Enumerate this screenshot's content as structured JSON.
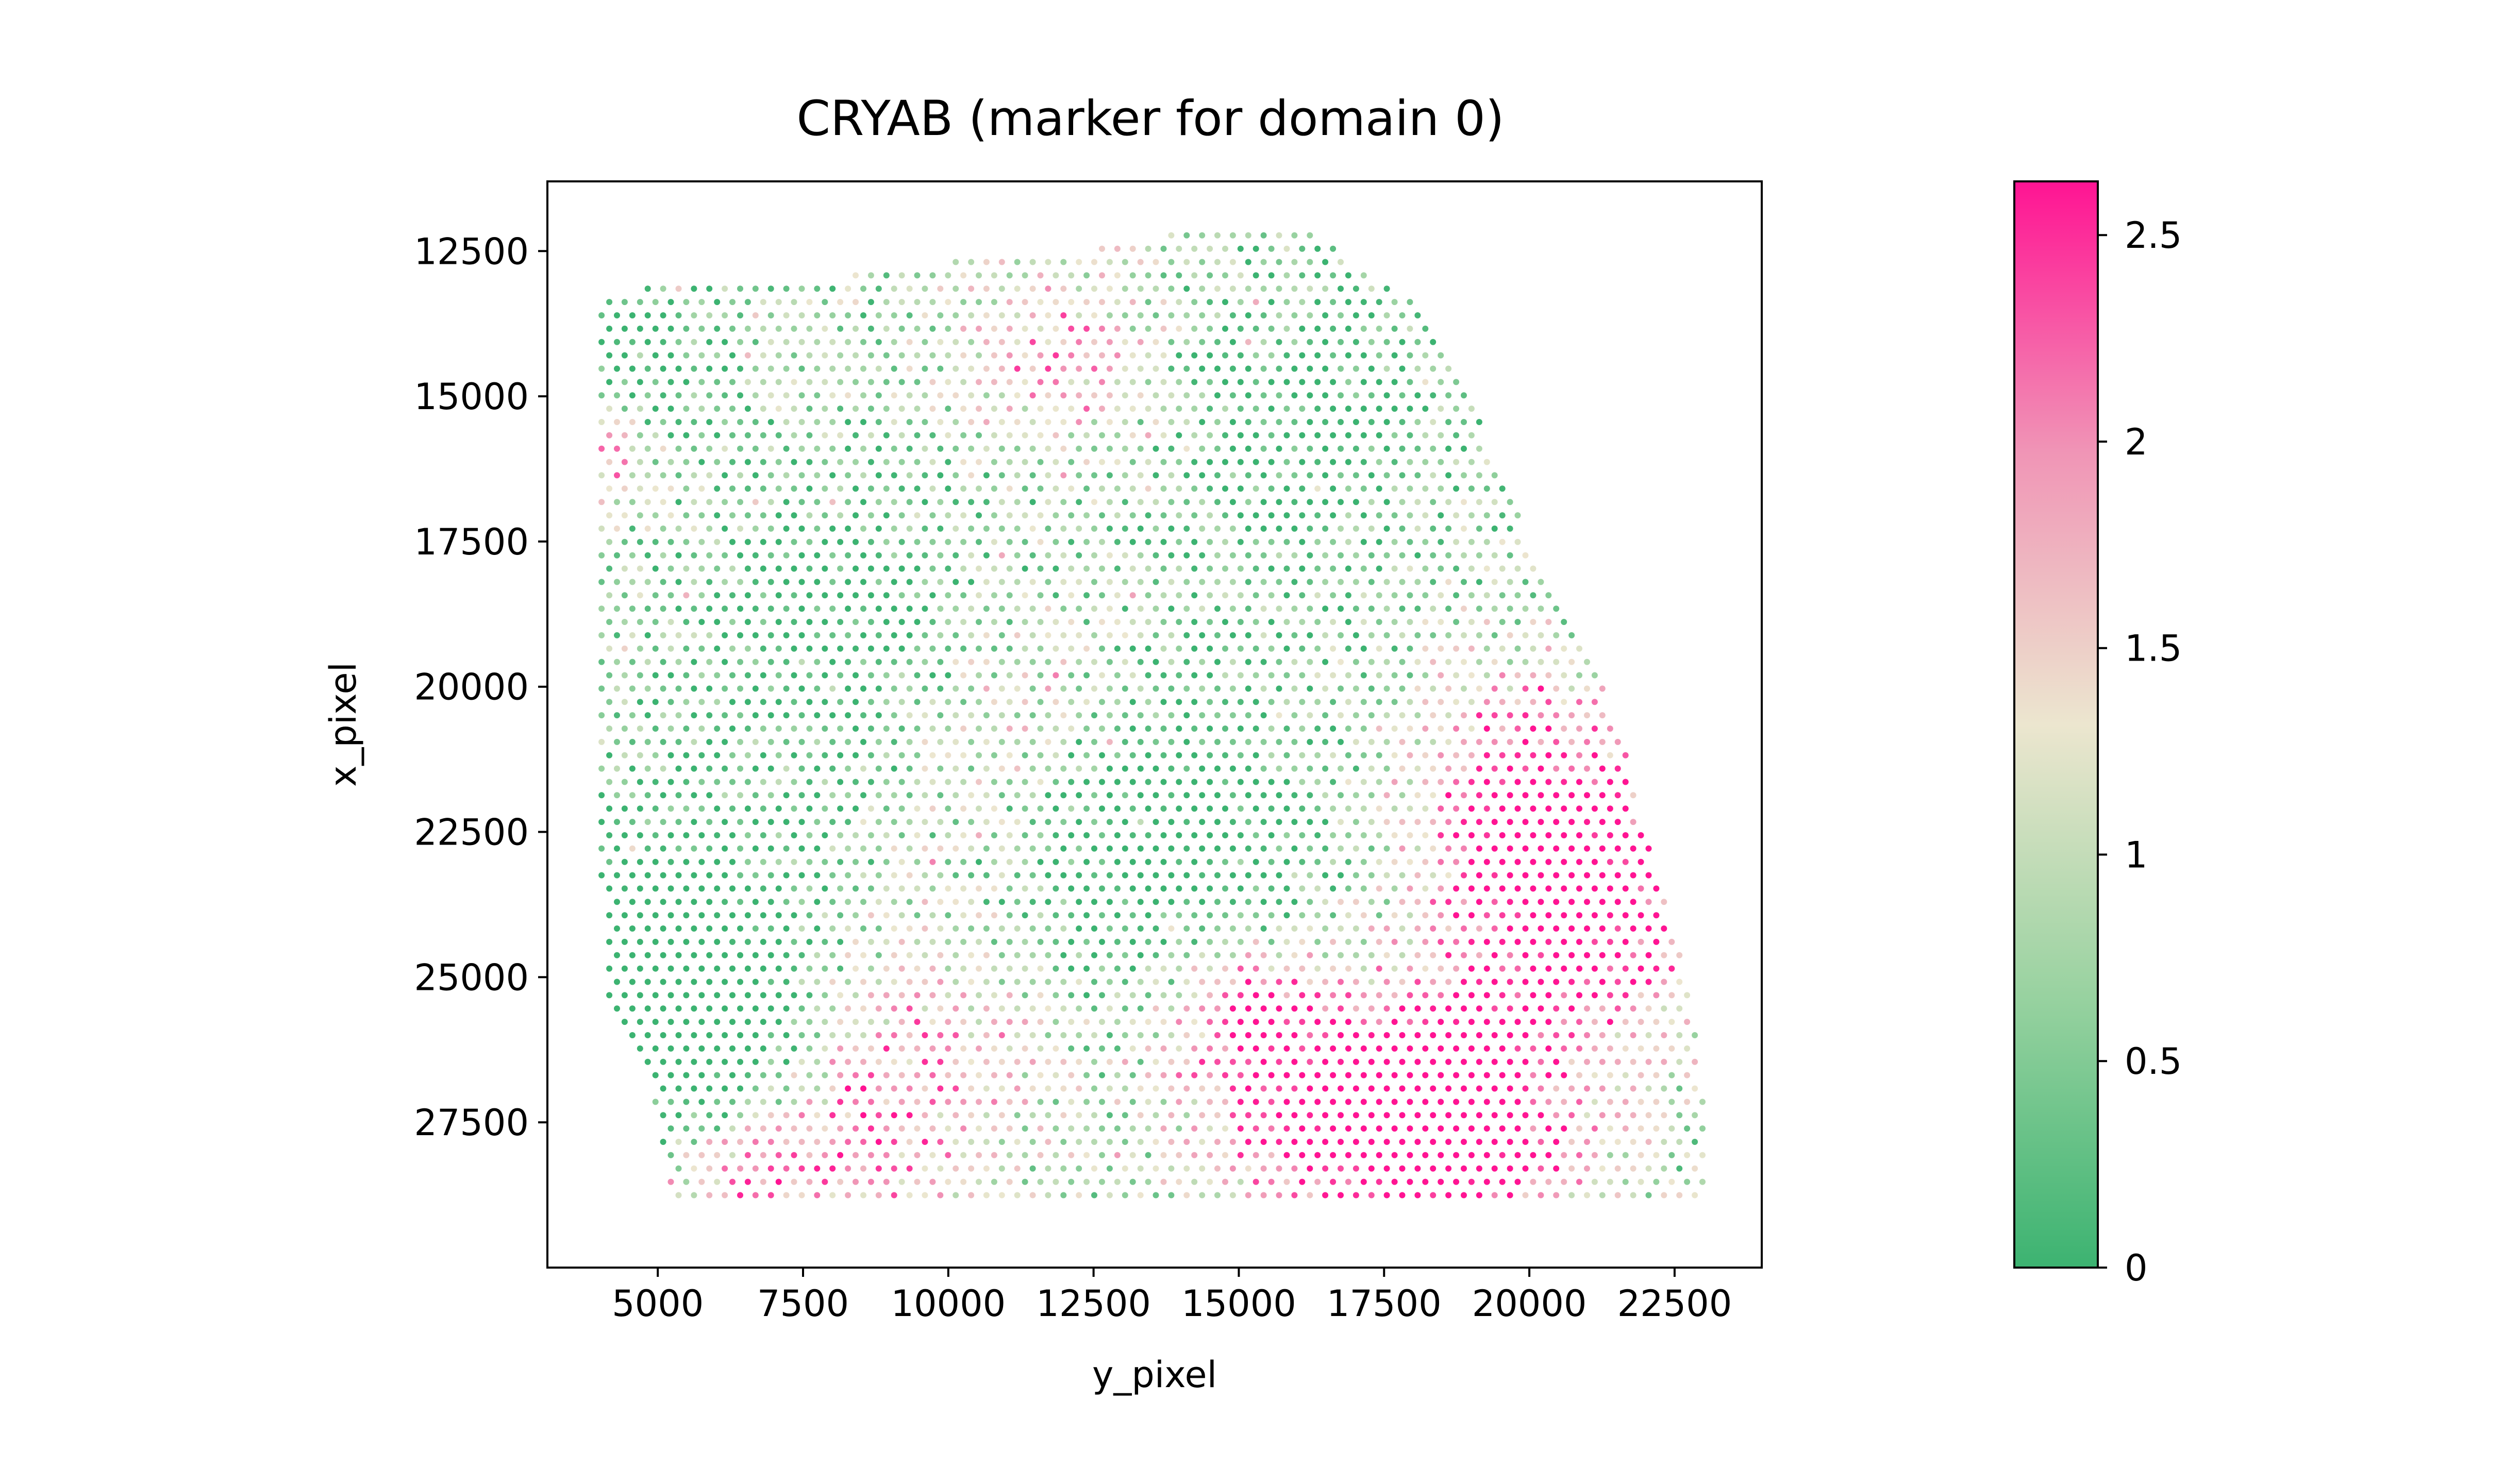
{
  "chart_data": {
    "type": "scatter",
    "title": "CRYAB (marker for domain 0)",
    "xlabel": "y_pixel",
    "ylabel": "x_pixel",
    "xlim": [
      3100,
      24000
    ],
    "ylim": [
      30000,
      11300
    ],
    "y_inverted": true,
    "x_ticks": [
      5000,
      7500,
      10000,
      12500,
      15000,
      17500,
      20000,
      22500
    ],
    "y_ticks": [
      12500,
      15000,
      17500,
      20000,
      22500,
      25000,
      27500
    ],
    "colorbar": {
      "range": [
        0,
        2.63
      ],
      "ticks": [
        0,
        0.5,
        1,
        1.5,
        2,
        2.5
      ],
      "tick_labels": [
        "0",
        "0.5",
        "1",
        "1.5",
        "2",
        "2.5"
      ],
      "colors": [
        "#3cb371",
        "#98d2a0",
        "#ece6cf",
        "#f095b6",
        "#ff1493"
      ]
    },
    "tissue_outline": [
      [
        4000,
        13300
      ],
      [
        5000,
        13050
      ],
      [
        7500,
        13000
      ],
      [
        10000,
        12700
      ],
      [
        12500,
        12450
      ],
      [
        14500,
        12100
      ],
      [
        15600,
        12000
      ],
      [
        16500,
        12300
      ],
      [
        17000,
        12700
      ],
      [
        18000,
        13400
      ],
      [
        19000,
        15000
      ],
      [
        20000,
        17500
      ],
      [
        21500,
        20500
      ],
      [
        22000,
        22500
      ],
      [
        22700,
        25000
      ],
      [
        23100,
        27500
      ],
      [
        23100,
        28800
      ],
      [
        22500,
        28750
      ],
      [
        20000,
        28800
      ],
      [
        17500,
        28900
      ],
      [
        15000,
        28850
      ],
      [
        12500,
        28900
      ],
      [
        10000,
        28950
      ],
      [
        7500,
        28950
      ],
      [
        5200,
        28950
      ],
      [
        5000,
        27500
      ],
      [
        4900,
        26800
      ],
      [
        4100,
        25500
      ],
      [
        4000,
        22500
      ],
      [
        3950,
        17500
      ],
      [
        3950,
        15000
      ]
    ],
    "grid_spacing": 265,
    "point_radius_px": 6,
    "hotspots": [
      [
        19800,
        21800,
        1400,
        0.7
      ],
      [
        21000,
        24000,
        1500,
        0.8
      ],
      [
        18500,
        28000,
        1600,
        0.8
      ],
      [
        16000,
        27000,
        1400,
        0.6
      ],
      [
        18800,
        26500,
        1200,
        0.5
      ],
      [
        15000,
        25500,
        900,
        0.5
      ],
      [
        8500,
        27800,
        1500,
        0.45
      ],
      [
        6300,
        28500,
        900,
        0.4
      ],
      [
        12000,
        14300,
        1200,
        0.45
      ],
      [
        11000,
        20500,
        1500,
        0.4
      ],
      [
        4100,
        16000,
        600,
        0.5
      ],
      [
        10000,
        25500,
        1500,
        0.3
      ]
    ],
    "coldspots": [
      [
        5200,
        24500,
        1700,
        0.6
      ],
      [
        6000,
        26300,
        1000,
        0.5
      ],
      [
        4500,
        14000,
        1200,
        0.4
      ],
      [
        13500,
        22500,
        2000,
        0.5
      ],
      [
        8500,
        19000,
        1800,
        0.4
      ],
      [
        16000,
        15500,
        1800,
        0.35
      ]
    ],
    "random_seed": 20240517
  }
}
